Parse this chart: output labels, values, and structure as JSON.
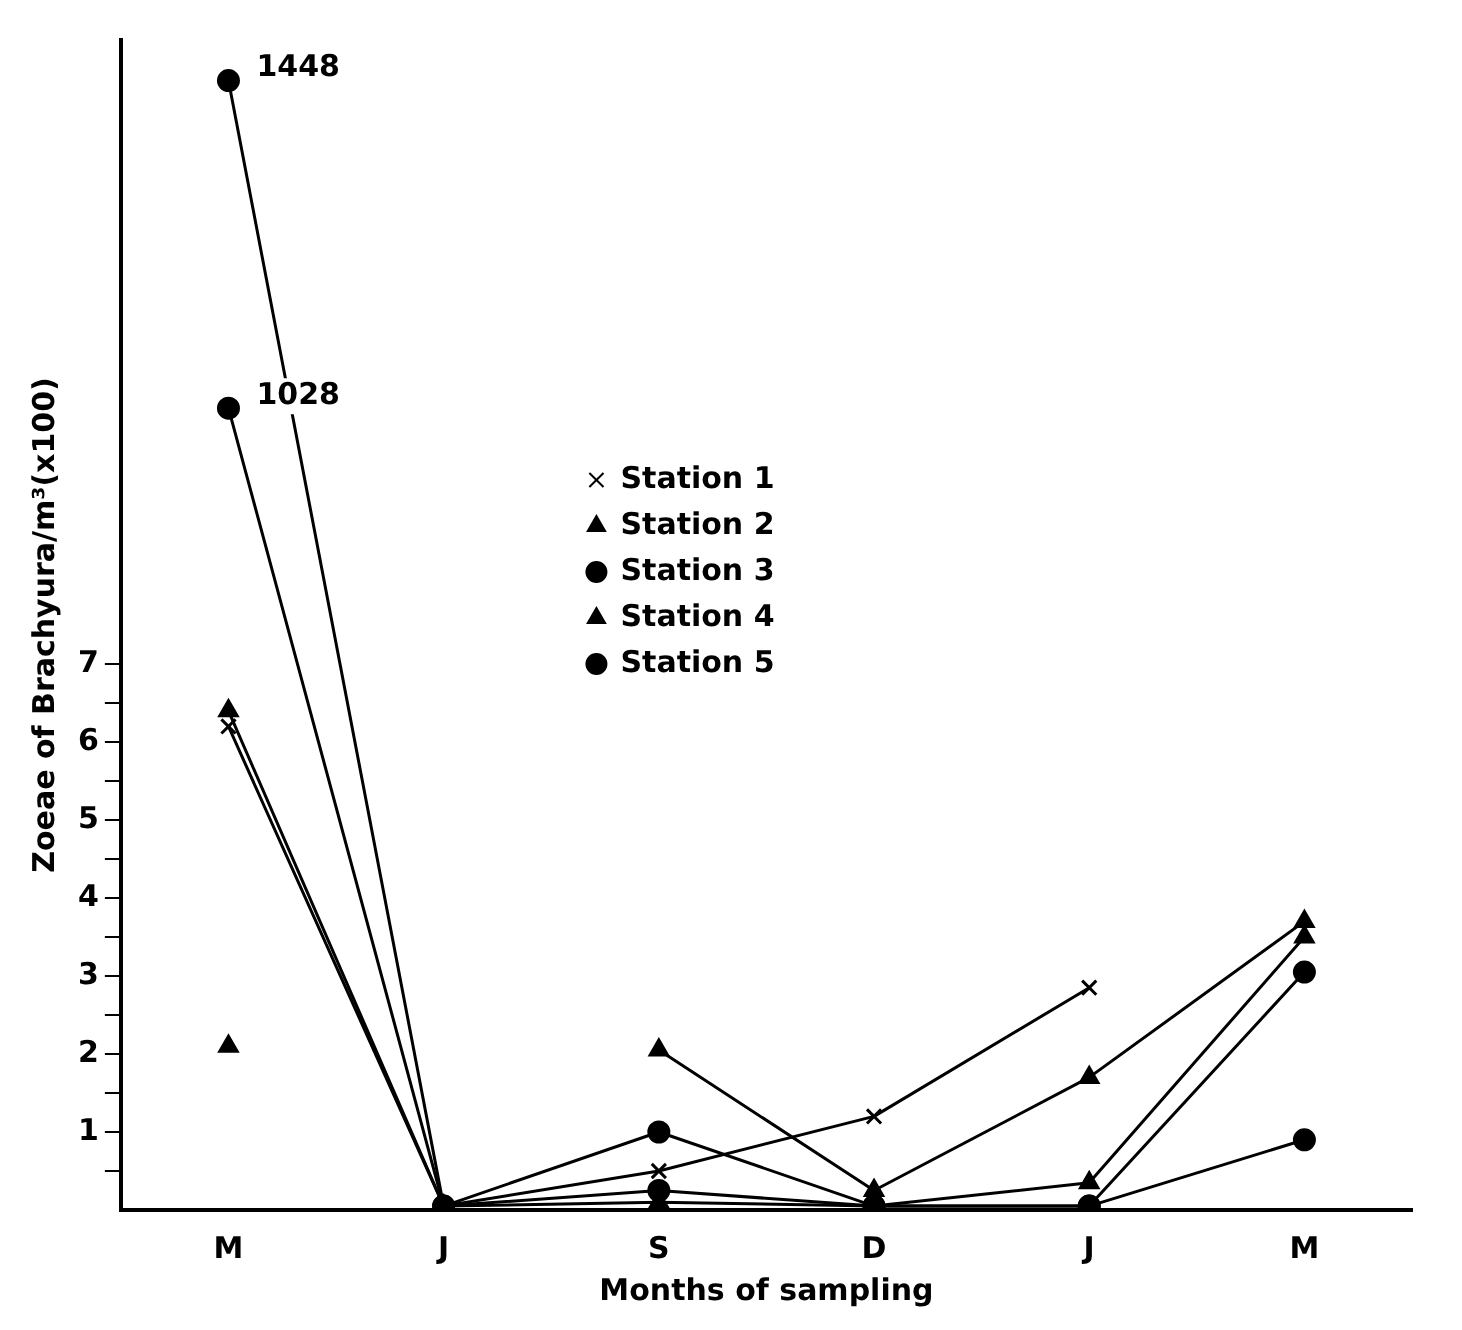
{
  "chart_data": {
    "type": "line",
    "xlabel": "Months of sampling",
    "ylabel": "Zoeae of Brachyura/m³(x100)",
    "categories": [
      "M",
      "J",
      "S",
      "D",
      "J",
      "M"
    ],
    "ylim": [
      0,
      15
    ],
    "yticks": [
      {
        "value": 0.5,
        "label": null
      },
      1,
      {
        "value": 1.5,
        "label": null
      },
      2,
      {
        "value": 2.5,
        "label": null
      },
      3,
      {
        "value": 3.5,
        "label": null
      },
      4,
      {
        "value": 4.5,
        "label": null
      },
      5,
      {
        "value": 5.5,
        "label": null
      },
      6,
      {
        "value": 6.5,
        "label": null
      },
      7
    ],
    "grid": false,
    "legend": "top",
    "line_style": "solid",
    "annotations": [
      {
        "text": "1448",
        "x": "M",
        "y": 14.48
      },
      {
        "text": "1028",
        "x": "M",
        "y": 10.28
      }
    ],
    "series": [
      {
        "name": "Station 1",
        "color": "#000000",
        "marker": "cross",
        "values": [
          6.2,
          0.05,
          0.5,
          1.2,
          2.85,
          null
        ]
      },
      {
        "name": "Station 2",
        "color": "#000000",
        "marker": "triangle",
        "values": [
          2.1,
          null,
          2.05,
          0.25,
          1.7,
          3.7
        ]
      },
      {
        "name": "Station 3",
        "color": "#000000",
        "marker": "circle",
        "values": [
          14.48,
          0.05,
          1.0,
          0.05,
          0.05,
          3.05
        ]
      },
      {
        "name": "Station 4",
        "color": "#000000",
        "marker": "triangle",
        "values": [
          6.4,
          0.05,
          0.1,
          0.05,
          0.35,
          3.5
        ]
      },
      {
        "name": "Station 5",
        "color": "#000000",
        "marker": "circle",
        "values": [
          10.28,
          0.05,
          0.25,
          0.05,
          0.05,
          0.9
        ]
      }
    ]
  }
}
